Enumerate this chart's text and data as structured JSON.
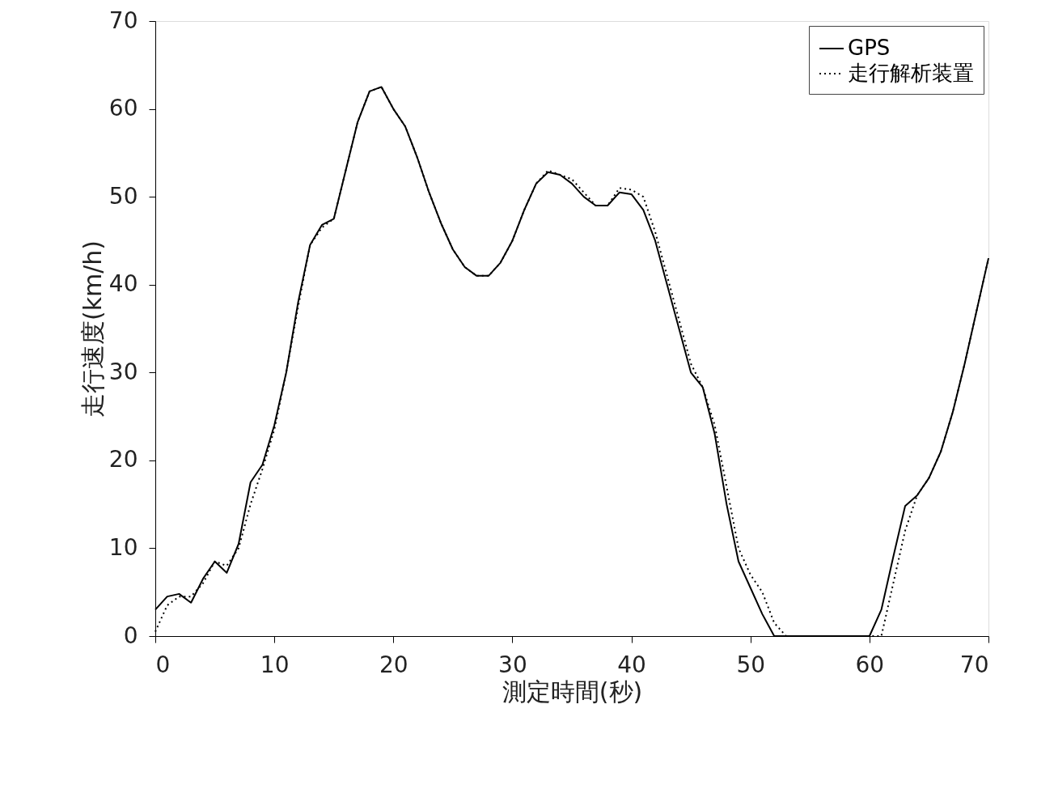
{
  "chart_data": {
    "type": "line",
    "xlabel": "測定時間(秒)",
    "ylabel": "走行速度(km/h)",
    "xlim": [
      0,
      70
    ],
    "ylim": [
      0,
      70
    ],
    "xticks": [
      0,
      10,
      20,
      30,
      40,
      50,
      60,
      70
    ],
    "yticks": [
      0,
      10,
      20,
      30,
      40,
      50,
      60,
      70
    ],
    "grid": false,
    "legend": "top right",
    "marker": "none",
    "x": [
      0,
      1,
      2,
      3,
      4,
      5,
      6,
      7,
      8,
      9,
      10,
      11,
      12,
      13,
      14,
      15,
      16,
      17,
      18,
      19,
      20,
      21,
      22,
      23,
      24,
      25,
      26,
      27,
      28,
      29,
      30,
      31,
      32,
      33,
      34,
      35,
      36,
      37,
      38,
      39,
      40,
      41,
      42,
      43,
      44,
      45,
      46,
      47,
      48,
      49,
      50,
      51,
      52,
      53,
      54,
      55,
      56,
      57,
      58,
      59,
      60,
      61,
      62,
      63,
      64,
      65,
      66,
      67,
      68,
      69,
      70
    ],
    "series": [
      {
        "name": "GPS",
        "color": "#000000",
        "line_style": "solid",
        "values": [
          3,
          4.5,
          4.8,
          3.8,
          6.5,
          8.5,
          7.2,
          10.5,
          17.5,
          19.5,
          24,
          30,
          38,
          44.5,
          46.8,
          47.5,
          53,
          58.5,
          62,
          62.5,
          60,
          58,
          54.5,
          50.5,
          47,
          44,
          42,
          41,
          41,
          42.5,
          45,
          48.5,
          51.5,
          52.8,
          52.5,
          51.5,
          50,
          49,
          49,
          50.5,
          50.3,
          48.5,
          45,
          40,
          35,
          30,
          28.3,
          23,
          15,
          8.5,
          5.5,
          2.5,
          0,
          0,
          0,
          0,
          0,
          0,
          0,
          0,
          0,
          3,
          9,
          14.8,
          16,
          18,
          21,
          25.5,
          31,
          37,
          43
        ]
      },
      {
        "name": "走行解析装置",
        "color": "#000000",
        "line_style": "dotted",
        "values": [
          0.5,
          3.5,
          4.5,
          4.5,
          6,
          8.5,
          8,
          10,
          15,
          19,
          23.5,
          30,
          37.5,
          44.5,
          46.5,
          47.5,
          53,
          58.5,
          62,
          62.5,
          60,
          58,
          54.5,
          50.5,
          47,
          44,
          42,
          41,
          41,
          42.5,
          45,
          48.5,
          51.5,
          53,
          52.5,
          52,
          50.5,
          49,
          49,
          51,
          50.8,
          50,
          46,
          41,
          36,
          31,
          28.3,
          24,
          17,
          10,
          7,
          5,
          1.5,
          0,
          0,
          0,
          0,
          0,
          0,
          0,
          0,
          0,
          6,
          12,
          16,
          18,
          21,
          25.5,
          31,
          37,
          43
        ]
      }
    ]
  }
}
